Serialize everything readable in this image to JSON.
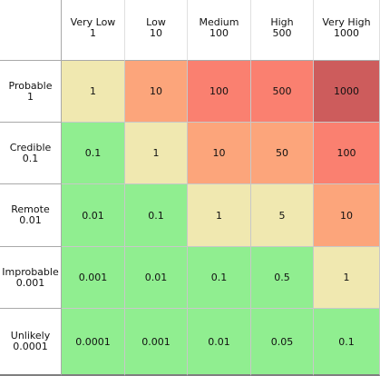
{
  "matrix": {
    "columns": [
      {
        "label": "Very Low",
        "value": "1"
      },
      {
        "label": "Low",
        "value": "10"
      },
      {
        "label": "Medium",
        "value": "100"
      },
      {
        "label": "High",
        "value": "500"
      },
      {
        "label": "Very High",
        "value": "1000"
      }
    ],
    "rows": [
      {
        "label": "Probable",
        "value": "1",
        "cells": [
          {
            "text": "1",
            "color": "#f0e8b0"
          },
          {
            "text": "10",
            "color": "#fca57b"
          },
          {
            "text": "100",
            "color": "#fa8070"
          },
          {
            "text": "500",
            "color": "#fa8070"
          },
          {
            "text": "1000",
            "color": "#cd5c5c"
          }
        ]
      },
      {
        "label": "Credible",
        "value": "0.1",
        "cells": [
          {
            "text": "0.1",
            "color": "#90ee90"
          },
          {
            "text": "1",
            "color": "#f0e8b0"
          },
          {
            "text": "10",
            "color": "#fca57b"
          },
          {
            "text": "50",
            "color": "#fca57b"
          },
          {
            "text": "100",
            "color": "#fa8070"
          }
        ]
      },
      {
        "label": "Remote",
        "value": "0.01",
        "cells": [
          {
            "text": "0.01",
            "color": "#90ee90"
          },
          {
            "text": "0.1",
            "color": "#90ee90"
          },
          {
            "text": "1",
            "color": "#f0e8b0"
          },
          {
            "text": "5",
            "color": "#f0e8b0"
          },
          {
            "text": "10",
            "color": "#fca57b"
          }
        ]
      },
      {
        "label": "Improbable",
        "value": "0.001",
        "cells": [
          {
            "text": "0.001",
            "color": "#90ee90"
          },
          {
            "text": "0.01",
            "color": "#90ee90"
          },
          {
            "text": "0.1",
            "color": "#90ee90"
          },
          {
            "text": "0.5",
            "color": "#90ee90"
          },
          {
            "text": "1",
            "color": "#f0e8b0"
          }
        ]
      },
      {
        "label": "Unlikely",
        "value": "0.0001",
        "cells": [
          {
            "text": "0.0001",
            "color": "#90ee90"
          },
          {
            "text": "0.001",
            "color": "#90ee90"
          },
          {
            "text": "0.01",
            "color": "#90ee90"
          },
          {
            "text": "0.05",
            "color": "#90ee90"
          },
          {
            "text": "0.1",
            "color": "#90ee90"
          }
        ]
      }
    ]
  }
}
